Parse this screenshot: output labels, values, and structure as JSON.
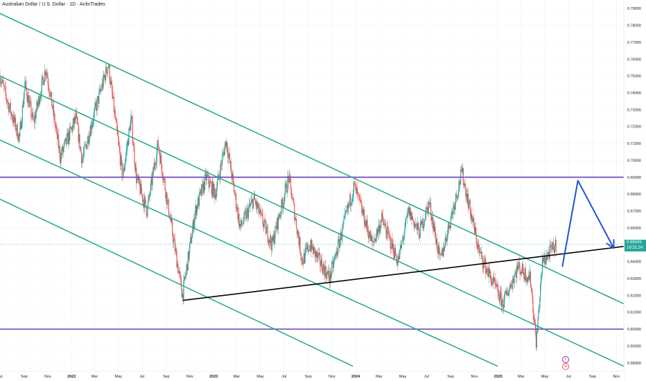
{
  "header": {
    "title": "Australian Dollar / U.S. Dollar · 1D · ActivTrades"
  },
  "price_tag": {
    "price": "0.65043",
    "countdown": "19:31:24",
    "value": 0.65043,
    "color": "#26a69a"
  },
  "colors": {
    "channel": "#1fa98a",
    "horizontal": "#7e57c2",
    "trendline": "#000000",
    "projection": "#1e50d6",
    "candle_up": "#26a69a",
    "candle_down": "#ef5350",
    "grid": "#f0f3fa"
  },
  "badges": [
    {
      "name": "lightning-icon",
      "glyph": "⚡",
      "color": "#9c27b0"
    },
    {
      "name": "flag-icon",
      "glyph": "≡",
      "color": "#ef5350"
    }
  ],
  "chart_data": {
    "type": "candlestick",
    "title": "Australian Dollar / U.S. Dollar · 1D · ActivTrades",
    "ylim": [
      0.575,
      0.795
    ],
    "xlim": [
      "2021-07-01",
      "2025-11-20"
    ],
    "y_ticks": [
      "0.79000",
      "0.78000",
      "0.77000",
      "0.76000",
      "0.75000",
      "0.74000",
      "0.73000",
      "0.72000",
      "0.71000",
      "0.70000",
      "0.69000",
      "0.68000",
      "0.67000",
      "0.66000",
      "0.65000",
      "0.64000",
      "0.63000",
      "0.62000",
      "0.61000",
      "0.60000",
      "0.59000",
      "0.58000"
    ],
    "x_ticks": [
      {
        "label": "Jul",
        "date": "2021-07-01"
      },
      {
        "label": "Sep",
        "date": "2021-09-01"
      },
      {
        "label": "Nov",
        "date": "2021-11-01"
      },
      {
        "label": "2022",
        "date": "2022-01-01"
      },
      {
        "label": "Mar",
        "date": "2022-03-01"
      },
      {
        "label": "May",
        "date": "2022-05-01"
      },
      {
        "label": "Jul",
        "date": "2022-07-01"
      },
      {
        "label": "Sep",
        "date": "2022-09-01"
      },
      {
        "label": "Nov",
        "date": "2022-11-01"
      },
      {
        "label": "2023",
        "date": "2023-01-01"
      },
      {
        "label": "Mar",
        "date": "2023-03-01"
      },
      {
        "label": "May",
        "date": "2023-05-01"
      },
      {
        "label": "Jul",
        "date": "2023-07-01"
      },
      {
        "label": "Sep",
        "date": "2023-09-01"
      },
      {
        "label": "Nov",
        "date": "2023-11-01"
      },
      {
        "label": "2024",
        "date": "2024-01-01"
      },
      {
        "label": "Mar",
        "date": "2024-03-01"
      },
      {
        "label": "May",
        "date": "2024-05-01"
      },
      {
        "label": "Jul",
        "date": "2024-07-01"
      },
      {
        "label": "Sep",
        "date": "2024-09-01"
      },
      {
        "label": "Nov",
        "date": "2024-11-01"
      },
      {
        "label": "2025",
        "date": "2025-01-01"
      },
      {
        "label": "Mar",
        "date": "2025-03-01"
      },
      {
        "label": "May",
        "date": "2025-05-01"
      },
      {
        "label": "Jul",
        "date": "2025-07-01"
      },
      {
        "label": "Sep",
        "date": "2025-09-01"
      },
      {
        "label": "Nov",
        "date": "2025-11-01"
      }
    ],
    "price_anchors": [
      [
        "2021-07-01",
        0.75
      ],
      [
        "2021-07-20",
        0.735
      ],
      [
        "2021-08-20",
        0.713
      ],
      [
        "2021-09-03",
        0.745
      ],
      [
        "2021-09-25",
        0.722
      ],
      [
        "2021-10-27",
        0.755
      ],
      [
        "2021-12-03",
        0.702
      ],
      [
        "2022-01-12",
        0.725
      ],
      [
        "2022-01-28",
        0.7
      ],
      [
        "2022-02-25",
        0.725
      ],
      [
        "2022-04-05",
        0.757
      ],
      [
        "2022-05-12",
        0.69
      ],
      [
        "2022-06-03",
        0.725
      ],
      [
        "2022-06-16",
        0.69
      ],
      [
        "2022-07-14",
        0.67
      ],
      [
        "2022-08-11",
        0.71
      ],
      [
        "2022-09-01",
        0.68
      ],
      [
        "2022-10-13",
        0.62
      ],
      [
        "2022-11-15",
        0.67
      ],
      [
        "2022-12-13",
        0.69
      ],
      [
        "2023-01-05",
        0.68
      ],
      [
        "2023-02-02",
        0.712
      ],
      [
        "2023-03-10",
        0.66
      ],
      [
        "2023-04-14",
        0.677
      ],
      [
        "2023-05-31",
        0.65
      ],
      [
        "2023-07-13",
        0.69
      ],
      [
        "2023-08-17",
        0.64
      ],
      [
        "2023-09-05",
        0.65
      ],
      [
        "2023-10-26",
        0.63
      ],
      [
        "2023-12-28",
        0.685
      ],
      [
        "2024-02-13",
        0.65
      ],
      [
        "2024-03-08",
        0.665
      ],
      [
        "2024-04-19",
        0.64
      ],
      [
        "2024-05-16",
        0.67
      ],
      [
        "2024-06-12",
        0.657
      ],
      [
        "2024-07-08",
        0.675
      ],
      [
        "2024-08-05",
        0.64
      ],
      [
        "2024-09-30",
        0.693
      ],
      [
        "2024-11-14",
        0.645
      ],
      [
        "2025-01-13",
        0.615
      ],
      [
        "2025-02-21",
        0.637
      ],
      [
        "2025-03-25",
        0.63
      ],
      [
        "2025-04-09",
        0.592
      ],
      [
        "2025-04-25",
        0.64
      ],
      [
        "2025-05-30",
        0.65
      ]
    ],
    "horizontal_levels": [
      {
        "name": "resistance",
        "y": 0.69
      },
      {
        "name": "support",
        "y": 0.6
      }
    ],
    "channel_lines": [
      {
        "name": "channel-line-1",
        "from": [
          "2021-07-01",
          0.787
        ],
        "to": [
          "2025-11-20",
          0.615
        ]
      },
      {
        "name": "channel-line-2",
        "from": [
          "2021-07-01",
          0.75
        ],
        "to": [
          "2025-11-20",
          0.578
        ]
      },
      {
        "name": "channel-line-3",
        "from": [
          "2021-07-01",
          0.712
        ],
        "to": [
          "2024-12-31",
          0.578
        ]
      },
      {
        "name": "channel-line-4",
        "from": [
          "2021-07-01",
          0.677
        ],
        "to": [
          "2023-12-25",
          0.578
        ]
      }
    ],
    "trendline": {
      "from": [
        "2022-10-13",
        0.617
      ],
      "to": [
        "2025-11-20",
        0.649
      ]
    },
    "projection": [
      [
        "2025-06-15",
        0.637
      ],
      [
        "2025-07-25",
        0.688
      ],
      [
        "2025-10-25",
        0.648
      ]
    ]
  }
}
